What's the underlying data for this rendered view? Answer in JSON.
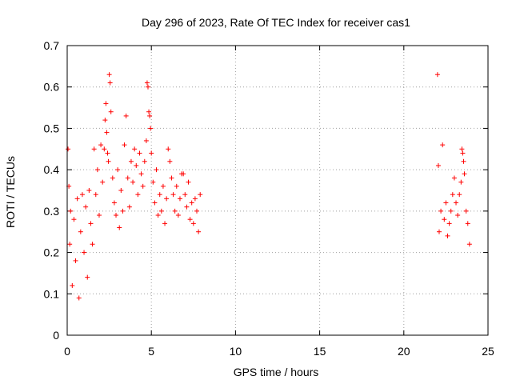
{
  "chart_data": {
    "type": "scatter",
    "title": "Day 296 of 2023, Rate Of TEC Index for receiver cas1",
    "xlabel": "GPS time / hours",
    "ylabel": "ROTI / TECUs",
    "xlim": [
      0,
      25
    ],
    "ylim": [
      0,
      0.7
    ],
    "x_ticks": [
      0,
      5,
      10,
      15,
      20,
      25
    ],
    "y_ticks": [
      0,
      0.1,
      0.2,
      0.3,
      0.4,
      0.5,
      0.6,
      0.7
    ],
    "x_tick_labels": [
      "0",
      "5",
      "10",
      "15",
      "20",
      "25"
    ],
    "y_tick_labels": [
      "0",
      "0.1",
      "0.2",
      "0.3",
      "0.4",
      "0.5",
      "0.6",
      "0.7"
    ],
    "grid": true,
    "marker": "+",
    "color": "#ff0000",
    "series": [
      {
        "points": [
          [
            0.05,
            0.45
          ],
          [
            0.1,
            0.36
          ],
          [
            0.15,
            0.22
          ],
          [
            0.2,
            0.3
          ],
          [
            0.3,
            0.12
          ],
          [
            0.4,
            0.28
          ],
          [
            0.5,
            0.18
          ],
          [
            0.6,
            0.33
          ],
          [
            0.7,
            0.09
          ],
          [
            0.8,
            0.25
          ],
          [
            0.9,
            0.34
          ],
          [
            1.0,
            0.2
          ],
          [
            1.1,
            0.31
          ],
          [
            1.2,
            0.14
          ],
          [
            1.3,
            0.35
          ],
          [
            1.4,
            0.27
          ],
          [
            1.5,
            0.22
          ],
          [
            1.6,
            0.45
          ],
          [
            1.7,
            0.34
          ],
          [
            1.8,
            0.4
          ],
          [
            1.9,
            0.29
          ],
          [
            2.0,
            0.46
          ],
          [
            2.1,
            0.37
          ],
          [
            2.2,
            0.45
          ],
          [
            2.25,
            0.52
          ],
          [
            2.3,
            0.56
          ],
          [
            2.35,
            0.49
          ],
          [
            2.4,
            0.44
          ],
          [
            2.45,
            0.42
          ],
          [
            2.5,
            0.63
          ],
          [
            2.55,
            0.61
          ],
          [
            2.6,
            0.54
          ],
          [
            2.7,
            0.38
          ],
          [
            2.8,
            0.32
          ],
          [
            2.9,
            0.29
          ],
          [
            3.0,
            0.4
          ],
          [
            3.1,
            0.26
          ],
          [
            3.2,
            0.35
          ],
          [
            3.3,
            0.3
          ],
          [
            3.4,
            0.46
          ],
          [
            3.5,
            0.53
          ],
          [
            3.6,
            0.38
          ],
          [
            3.7,
            0.31
          ],
          [
            3.8,
            0.42
          ],
          [
            3.9,
            0.37
          ],
          [
            4.0,
            0.45
          ],
          [
            4.1,
            0.41
          ],
          [
            4.2,
            0.34
          ],
          [
            4.3,
            0.44
          ],
          [
            4.4,
            0.39
          ],
          [
            4.5,
            0.36
          ],
          [
            4.6,
            0.42
          ],
          [
            4.7,
            0.47
          ],
          [
            4.75,
            0.61
          ],
          [
            4.8,
            0.6
          ],
          [
            4.85,
            0.54
          ],
          [
            4.9,
            0.53
          ],
          [
            4.95,
            0.5
          ],
          [
            5.0,
            0.44
          ],
          [
            5.1,
            0.37
          ],
          [
            5.2,
            0.32
          ],
          [
            5.3,
            0.4
          ],
          [
            5.4,
            0.29
          ],
          [
            5.5,
            0.34
          ],
          [
            5.6,
            0.3
          ],
          [
            5.7,
            0.36
          ],
          [
            5.8,
            0.27
          ],
          [
            5.9,
            0.33
          ],
          [
            6.0,
            0.45
          ],
          [
            6.1,
            0.42
          ],
          [
            6.2,
            0.38
          ],
          [
            6.3,
            0.34
          ],
          [
            6.4,
            0.3
          ],
          [
            6.5,
            0.36
          ],
          [
            6.6,
            0.29
          ],
          [
            6.7,
            0.33
          ],
          [
            6.8,
            0.39
          ],
          [
            6.9,
            0.39
          ],
          [
            7.0,
            0.34
          ],
          [
            7.1,
            0.31
          ],
          [
            7.2,
            0.37
          ],
          [
            7.3,
            0.28
          ],
          [
            7.4,
            0.32
          ],
          [
            7.5,
            0.27
          ],
          [
            7.6,
            0.33
          ],
          [
            7.7,
            0.3
          ],
          [
            7.8,
            0.25
          ],
          [
            7.9,
            0.34
          ],
          [
            22.0,
            0.63
          ],
          [
            22.05,
            0.41
          ],
          [
            22.1,
            0.25
          ],
          [
            22.2,
            0.3
          ],
          [
            22.3,
            0.46
          ],
          [
            22.4,
            0.28
          ],
          [
            22.5,
            0.32
          ],
          [
            22.6,
            0.24
          ],
          [
            22.7,
            0.27
          ],
          [
            22.8,
            0.3
          ],
          [
            22.9,
            0.34
          ],
          [
            23.0,
            0.38
          ],
          [
            23.1,
            0.32
          ],
          [
            23.2,
            0.29
          ],
          [
            23.3,
            0.34
          ],
          [
            23.4,
            0.37
          ],
          [
            23.45,
            0.45
          ],
          [
            23.5,
            0.44
          ],
          [
            23.55,
            0.42
          ],
          [
            23.6,
            0.39
          ],
          [
            23.7,
            0.3
          ],
          [
            23.8,
            0.27
          ],
          [
            23.9,
            0.22
          ]
        ]
      }
    ]
  }
}
